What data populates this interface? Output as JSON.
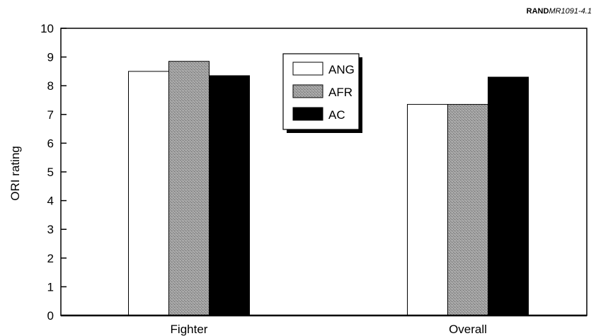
{
  "source_label": {
    "org": "RAND",
    "code": "MR1091-4.1"
  },
  "chart_data": {
    "type": "bar",
    "categories": [
      "Fighter",
      "Overall"
    ],
    "series": [
      {
        "name": "ANG",
        "values": [
          8.5,
          7.35
        ],
        "color": "#ffffff"
      },
      {
        "name": "AFR",
        "values": [
          8.85,
          7.35
        ],
        "color": "#9a9a9a"
      },
      {
        "name": "AC",
        "values": [
          8.35,
          8.3
        ],
        "color": "#000000"
      }
    ],
    "ylabel": "ORI rating",
    "ylim": [
      0,
      10
    ],
    "yticks": [
      "0",
      "1",
      "2",
      "3",
      "4",
      "5",
      "6",
      "7",
      "8",
      "9",
      "10"
    ],
    "grid": false,
    "legend_position": "top-center"
  }
}
